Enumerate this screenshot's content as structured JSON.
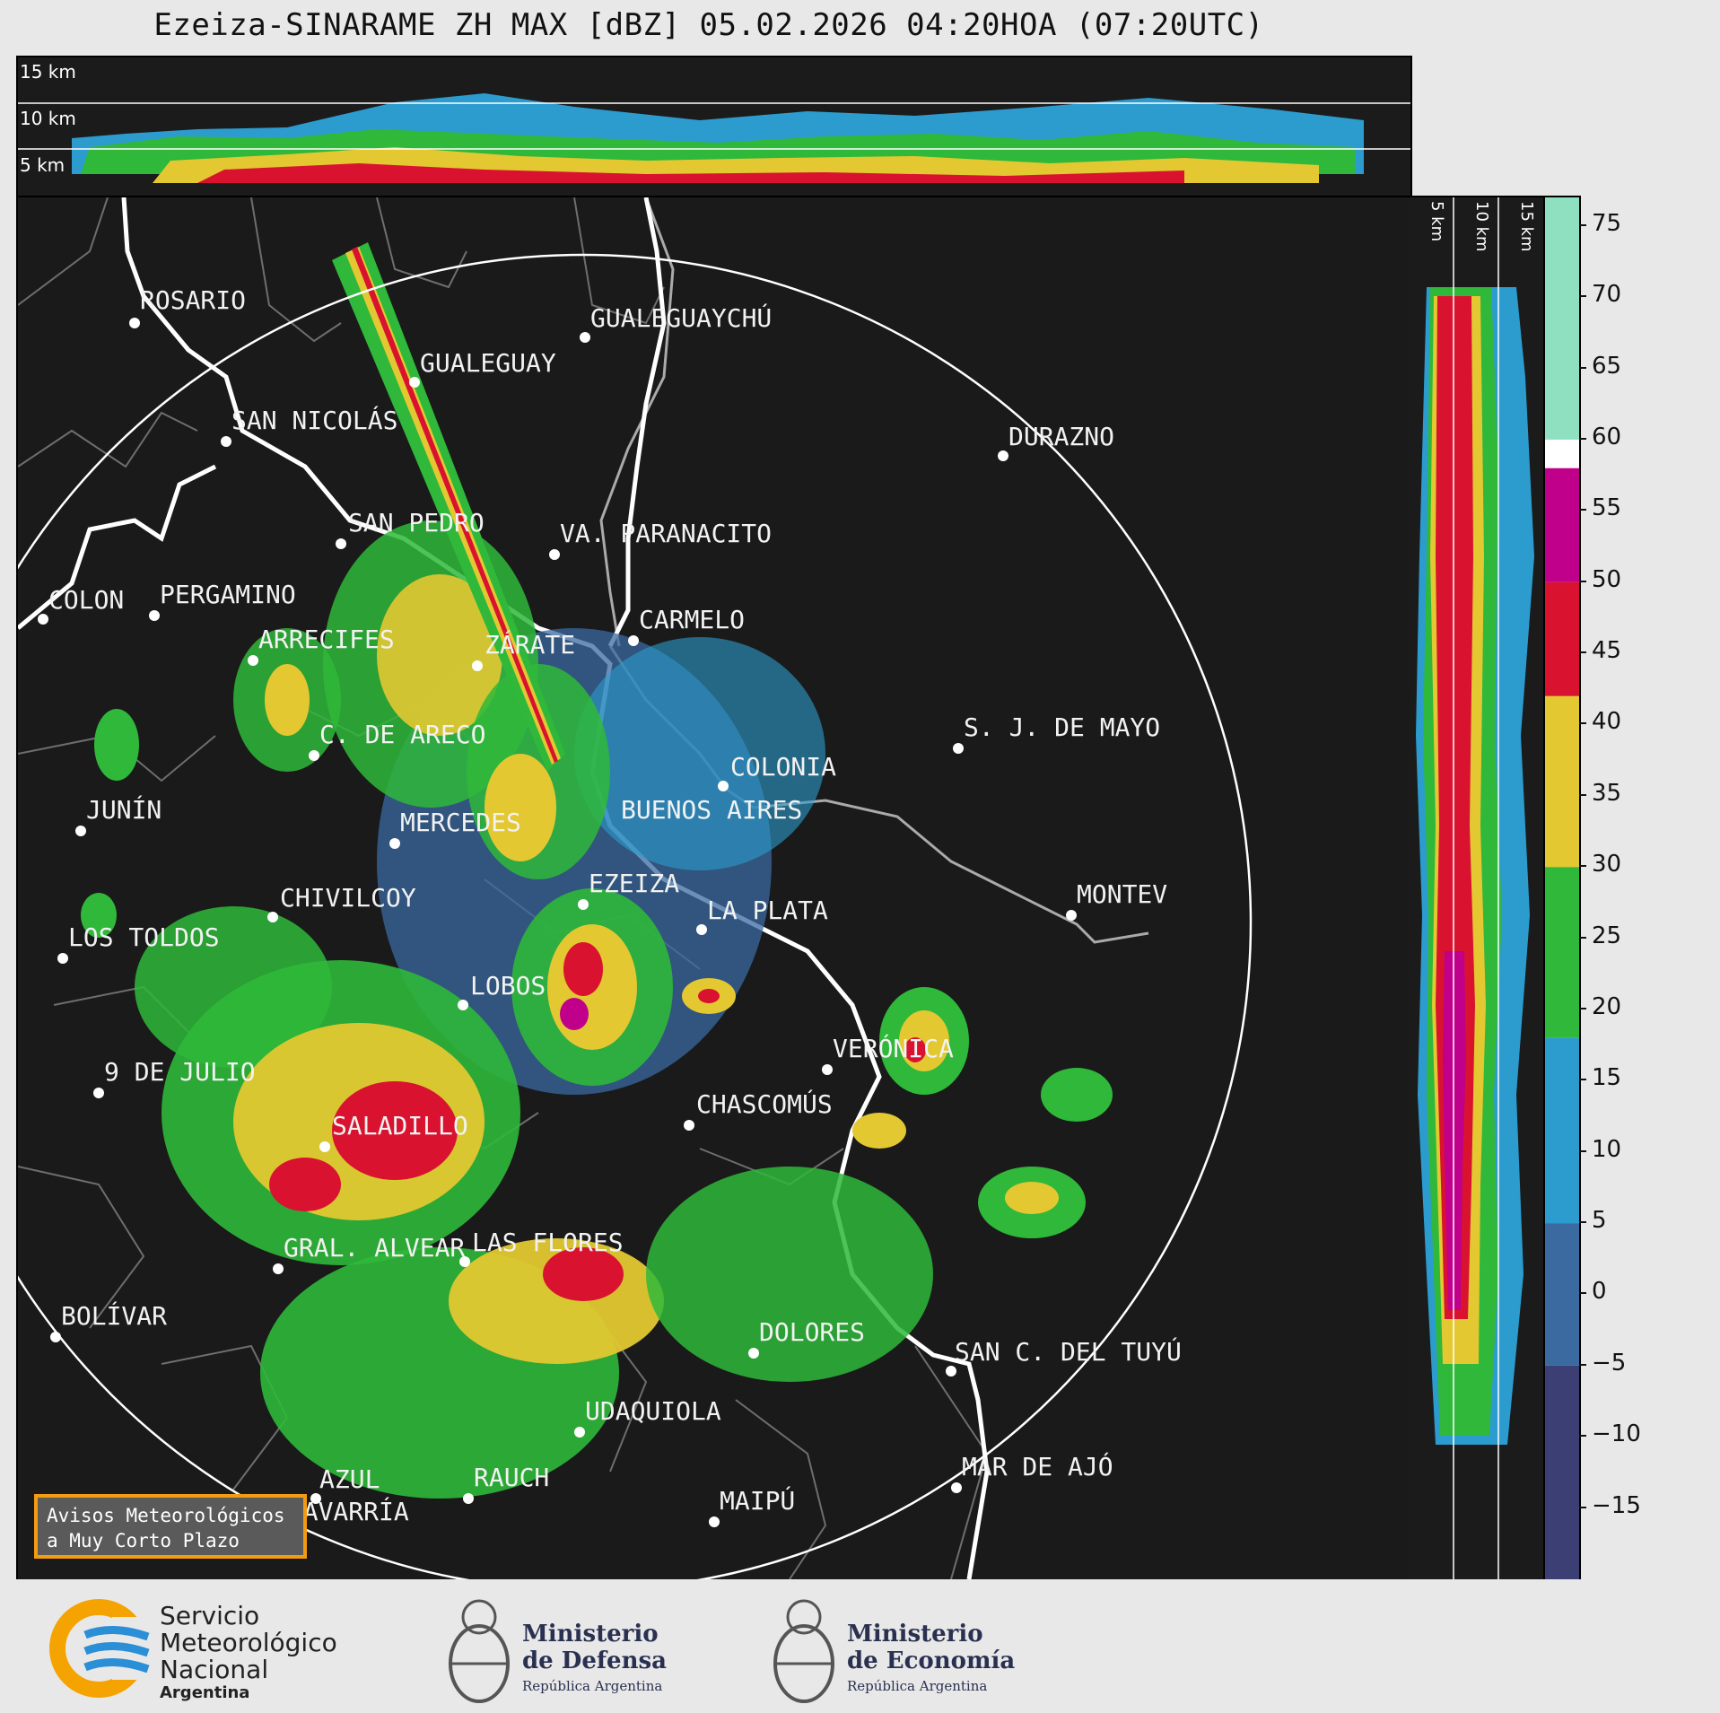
{
  "title": "Ezeiza-SINARAME ZH MAX [dBZ] 05.02.2026 04:20HOA (07:20UTC)",
  "height_labels": {
    "top": [
      "15 km",
      "10 km",
      "5 km"
    ],
    "side": [
      "5 km",
      "10 km",
      "15 km"
    ]
  },
  "colorbar": {
    "ticks": [
      "75",
      "70",
      "65",
      "60",
      "55",
      "50",
      "45",
      "40",
      "35",
      "30",
      "25",
      "20",
      "15",
      "10",
      "5",
      "0",
      "−5",
      "−10",
      "−15"
    ],
    "range": [
      -20,
      77
    ],
    "bands": [
      {
        "from": -20,
        "to": -5,
        "color": "#3b3f73"
      },
      {
        "from": -5,
        "to": 5,
        "color": "#3a6aa0"
      },
      {
        "from": 5,
        "to": 18,
        "color": "#2c9ccf"
      },
      {
        "from": 18,
        "to": 30,
        "color": "#2fb83a"
      },
      {
        "from": 30,
        "to": 42,
        "color": "#e3c832"
      },
      {
        "from": 42,
        "to": 50,
        "color": "#d9132f"
      },
      {
        "from": 50,
        "to": 58,
        "color": "#c0008a"
      },
      {
        "from": 58,
        "to": 60,
        "color": "#ffffff"
      },
      {
        "from": 60,
        "to": 77,
        "color": "#8fe0c0"
      }
    ]
  },
  "cities": [
    {
      "name": "ROSARIO"
    },
    {
      "name": "GUALEGUAYCHÚ"
    },
    {
      "name": "GUALEGUAY"
    },
    {
      "name": "SAN NICOLÁS"
    },
    {
      "name": "DURAZNO"
    },
    {
      "name": "SAN PEDRO"
    },
    {
      "name": "VA. PARANACITO"
    },
    {
      "name": "COLON"
    },
    {
      "name": "PERGAMINO"
    },
    {
      "name": "CARMELO"
    },
    {
      "name": "ARRECIFES"
    },
    {
      "name": "ZÁRATE"
    },
    {
      "name": "S. J. DE MAYO"
    },
    {
      "name": "C. DE ARECO"
    },
    {
      "name": "COLONIA"
    },
    {
      "name": "JUNÍN"
    },
    {
      "name": "BUENOS AIRES"
    },
    {
      "name": "MERCEDES"
    },
    {
      "name": "MONTEV"
    },
    {
      "name": "CHIVILCOY"
    },
    {
      "name": "EZEIZA"
    },
    {
      "name": "LA PLATA"
    },
    {
      "name": "LOS TOLDOS"
    },
    {
      "name": "LOBOS"
    },
    {
      "name": "VERÓNICA"
    },
    {
      "name": "9 DE JULIO"
    },
    {
      "name": "CHASCOMÚS"
    },
    {
      "name": "SALADILLO"
    },
    {
      "name": "GRAL. ALVEAR"
    },
    {
      "name": "LAS FLORES"
    },
    {
      "name": "BOLÍVAR"
    },
    {
      "name": "DOLORES"
    },
    {
      "name": "SAN C. DEL TUYÚ"
    },
    {
      "name": "UDAQUIOLA"
    },
    {
      "name": "MAR DE AJÓ"
    },
    {
      "name": "AZUL"
    },
    {
      "name": "RAUCH"
    },
    {
      "name": "OLAVARRÍA"
    },
    {
      "name": "MAIPÚ"
    }
  ],
  "notice": {
    "line1": "Avisos Meteorológicos",
    "line2": "a Muy Corto Plazo"
  },
  "footer": {
    "smn": {
      "line1": "Servicio",
      "line2": "Meteorológico",
      "line3": "Nacional",
      "line4": "Argentina"
    },
    "defensa": {
      "line1": "Ministerio",
      "line2": "de Defensa",
      "line3": "República Argentina"
    },
    "economia": {
      "line1": "Ministerio",
      "line2": "de Economía",
      "line3": "República Argentina"
    }
  }
}
